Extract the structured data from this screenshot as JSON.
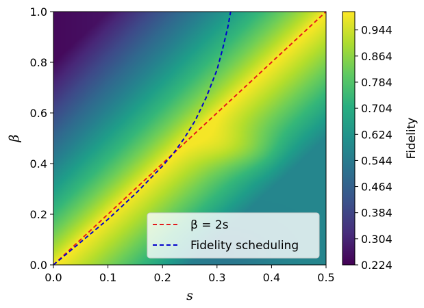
{
  "chart_data": {
    "type": "heatmap",
    "xlabel": "s",
    "ylabel": "β",
    "xlim": [
      0,
      0.5
    ],
    "ylim": [
      0,
      1.0
    ],
    "x_ticks": [
      "0.0",
      "0.1",
      "0.2",
      "0.3",
      "0.4",
      "0.5"
    ],
    "x_tick_values": [
      0,
      0.1,
      0.2,
      0.3,
      0.4,
      0.5
    ],
    "y_ticks": [
      "0.0",
      "0.2",
      "0.4",
      "0.6",
      "0.8",
      "1.0"
    ],
    "y_tick_values": [
      0,
      0.2,
      0.4,
      0.6,
      0.8,
      1.0
    ],
    "colorbar": {
      "label": "Fidelity",
      "colormap": "viridis",
      "range": [
        0.224,
        1.0
      ],
      "ticks": [
        "0.224",
        "0.304",
        "0.384",
        "0.464",
        "0.544",
        "0.624",
        "0.704",
        "0.784",
        "0.864",
        "0.944"
      ],
      "tick_values": [
        0.224,
        0.304,
        0.384,
        0.464,
        0.544,
        0.624,
        0.704,
        0.784,
        0.864,
        0.944
      ]
    },
    "series": [
      {
        "name": "β = 2s",
        "style": "dashed",
        "color": "#e31a1c",
        "x": [
          0,
          0.5
        ],
        "y": [
          0,
          1.0
        ]
      },
      {
        "name": "Fidelity scheduling",
        "style": "dashed",
        "color": "#0000cc",
        "x": [
          0,
          0.05,
          0.1,
          0.15,
          0.2,
          0.22,
          0.24,
          0.26,
          0.28,
          0.3,
          0.31,
          0.32,
          0.325
        ],
        "y": [
          0,
          0.09,
          0.18,
          0.28,
          0.39,
          0.44,
          0.5,
          0.57,
          0.66,
          0.77,
          0.85,
          0.94,
          1.0
        ]
      }
    ],
    "legend": {
      "position": "lower-right",
      "entries": [
        {
          "label": "β = 2s",
          "color": "#e31a1c",
          "style": "dashed"
        },
        {
          "label": "Fidelity scheduling",
          "color": "#0000cc",
          "style": "dashed"
        }
      ]
    },
    "grid": false
  }
}
